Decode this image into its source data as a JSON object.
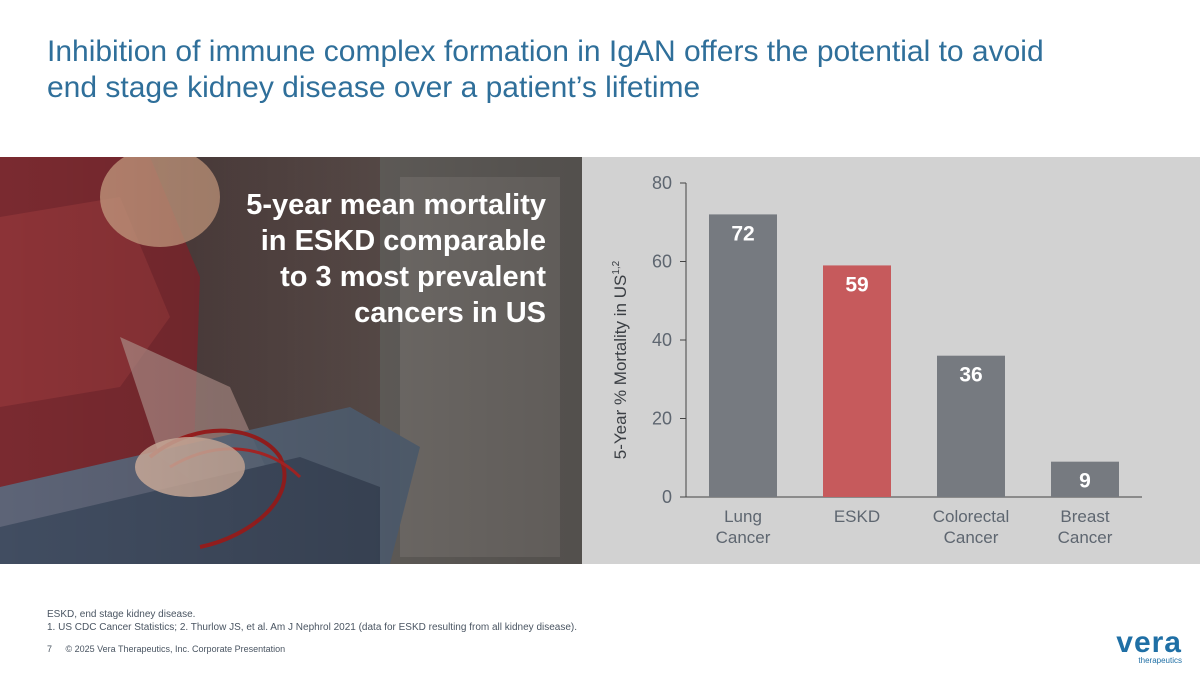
{
  "slide": {
    "title_lines": [
      "Inhibition of immune complex formation in IgAN offers the potential to avoid",
      "end stage kidney disease over a patient’s lifetime"
    ],
    "headline_lines": [
      "5-year mean mortality",
      "in ESKD comparable",
      "to 3 most prevalent",
      "cancers in US"
    ],
    "footnote_lines": [
      "ESKD, end stage kidney disease.",
      "1. US CDC Cancer Statistics; 2. Thurlow JS, et al. Am J Nephrol 2021 (data for ESKD resulting from all kidney disease)."
    ],
    "page_number": "7",
    "copyright": "© 2025 Vera Therapeutics, Inc. Corporate Presentation",
    "logo": {
      "word": "vera",
      "sub": "therapeutics"
    }
  },
  "colors": {
    "title": "#2f6f9a",
    "bar_gray": "#767a80",
    "bar_red": "#c65a5c",
    "panel": "#d2d2d2"
  },
  "chart_data": {
    "type": "bar",
    "categories": [
      [
        "Lung",
        "Cancer"
      ],
      [
        "ESKD"
      ],
      [
        "Colorectal",
        "Cancer"
      ],
      [
        "Breast",
        "Cancer"
      ]
    ],
    "values": [
      72,
      59,
      36,
      9
    ],
    "highlight_index": 1,
    "ylim": [
      0,
      80
    ],
    "yticks": [
      0,
      20,
      40,
      60,
      80
    ],
    "ylabel": "5-Year % Mortality in US",
    "ylabel_sup": "1,2",
    "xlabel": "",
    "title": "",
    "grid": false
  }
}
